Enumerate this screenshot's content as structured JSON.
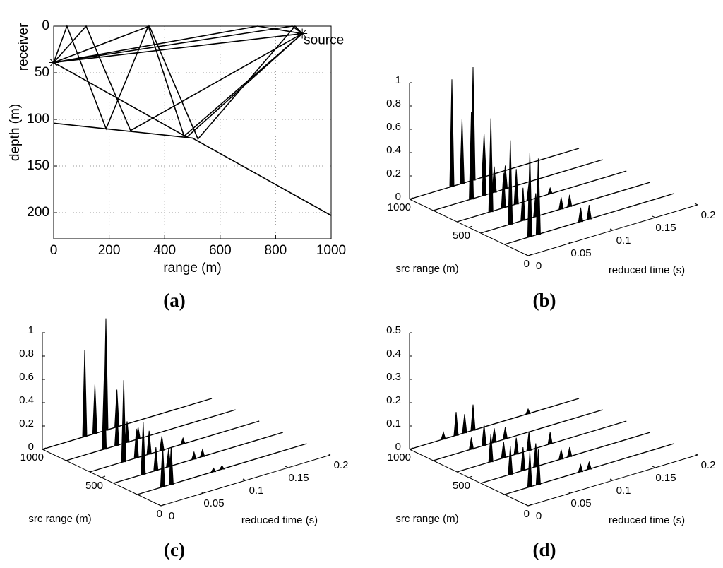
{
  "chart_data": [
    {
      "type": "rays",
      "caption": "(a)",
      "xlabel": "range (m)",
      "ylabel": "depth (m)",
      "xlim": [
        0,
        1000
      ],
      "xticks": [
        0,
        200,
        400,
        600,
        800,
        1000
      ],
      "ylim": [
        228,
        0
      ],
      "yticks": [
        0,
        50,
        100,
        150,
        200
      ],
      "grid": true,
      "color": "#000000",
      "annotations": [
        {
          "text": "receiver",
          "x": 0,
          "y": 39
        },
        {
          "text": "source",
          "x": 896,
          "y": 8
        }
      ],
      "series": [
        {
          "x": [
            0,
            500,
            1000
          ],
          "values": [
            104,
            120,
            203
          ]
        },
        {
          "x": [
            0,
            896
          ],
          "values": [
            39,
            8
          ]
        },
        {
          "x": [
            0,
            735,
            896
          ],
          "values": [
            39,
            0,
            8
          ]
        },
        {
          "x": [
            0,
            480,
            896
          ],
          "values": [
            39,
            119,
            8
          ]
        },
        {
          "x": [
            0,
            48,
            189,
            341,
            470,
            896
          ],
          "values": [
            39,
            0,
            110,
            0,
            118,
            8
          ]
        },
        {
          "x": [
            0,
            117,
            277,
            896
          ],
          "values": [
            39,
            0,
            112,
            8
          ]
        },
        {
          "x": [
            0,
            860,
            896
          ],
          "values": [
            39,
            0,
            8
          ]
        },
        {
          "x": [
            0,
            345,
            520,
            870,
            896
          ],
          "values": [
            39,
            0,
            121,
            0,
            8
          ]
        }
      ]
    },
    {
      "type": "waterfall",
      "caption": "(b)",
      "xlabel": "reduced time (s)",
      "ylabel": "src range (m)",
      "xlim": [
        0,
        0.2
      ],
      "xticks": [
        0,
        0.05,
        0.1,
        0.15,
        0.2
      ],
      "ylim": [
        0,
        1000
      ],
      "yticks": [
        0,
        500,
        1000
      ],
      "zlim": [
        0,
        1
      ],
      "zticks": [
        0,
        0.2,
        0.4,
        0.6,
        0.8,
        1
      ],
      "color": "#000000",
      "series": [
        {
          "src_range": 1000,
          "x": [
            0.05,
            0.062,
            0.075,
            0.088
          ],
          "values": [
            0.92,
            0.55,
            0.97,
            0.37
          ]
        },
        {
          "src_range": 800,
          "x": [
            0.045,
            0.06,
            0.072,
            0.085
          ],
          "values": [
            0.75,
            0.36,
            0.22,
            0.2
          ]
        },
        {
          "src_range": 600,
          "x": [
            0.04,
            0.055,
            0.07,
            0.085,
            0.11
          ],
          "values": [
            0.8,
            0.3,
            0.3,
            0.15,
            0.05
          ]
        },
        {
          "src_range": 400,
          "x": [
            0.035,
            0.05,
            0.065,
            0.095,
            0.105
          ],
          "values": [
            0.72,
            0.28,
            0.2,
            0.1,
            0.1
          ]
        },
        {
          "src_range": 200,
          "x": [
            0.03,
            0.04,
            0.09,
            0.1
          ],
          "values": [
            0.72,
            0.65,
            0.12,
            0.12
          ]
        }
      ]
    },
    {
      "type": "waterfall",
      "caption": "(c)",
      "xlabel": "reduced time (s)",
      "ylabel": "src range (m)",
      "xlim": [
        0,
        0.2
      ],
      "xticks": [
        0,
        0.05,
        0.1,
        0.15,
        0.2
      ],
      "ylim": [
        0,
        1000
      ],
      "yticks": [
        0,
        500,
        1000
      ],
      "zlim": [
        0,
        1
      ],
      "zticks": [
        0,
        0.2,
        0.4,
        0.6,
        0.8,
        1
      ],
      "color": "#000000",
      "series": [
        {
          "src_range": 1000,
          "x": [
            0.05,
            0.062,
            0.075,
            0.088
          ],
          "values": [
            0.74,
            0.42,
            0.96,
            0.32
          ]
        },
        {
          "src_range": 800,
          "x": [
            0.045,
            0.06,
            0.072,
            0.085
          ],
          "values": [
            0.62,
            0.28,
            0.18,
            0.1
          ]
        },
        {
          "src_range": 600,
          "x": [
            0.04,
            0.055,
            0.07,
            0.085,
            0.11
          ],
          "values": [
            0.7,
            0.25,
            0.2,
            0.12,
            0.05
          ]
        },
        {
          "src_range": 400,
          "x": [
            0.035,
            0.05,
            0.065,
            0.095,
            0.105
          ],
          "values": [
            0.45,
            0.2,
            0.15,
            0.06,
            0.06
          ]
        },
        {
          "src_range": 200,
          "x": [
            0.03,
            0.04,
            0.09,
            0.1
          ],
          "values": [
            0.35,
            0.32,
            0.03,
            0.03
          ]
        }
      ]
    },
    {
      "type": "waterfall",
      "caption": "(d)",
      "xlabel": "reduced time (s)",
      "ylabel": "src range (m)",
      "xlim": [
        0,
        0.2
      ],
      "xticks": [
        0,
        0.05,
        0.1,
        0.15,
        0.2
      ],
      "ylim": [
        0,
        1000
      ],
      "yticks": [
        0,
        500,
        1000
      ],
      "zlim": [
        0,
        0.5
      ],
      "zticks": [
        0,
        0.1,
        0.2,
        0.3,
        0.4,
        0.5
      ],
      "color": "#000000",
      "series": [
        {
          "src_range": 1000,
          "x": [
            0.04,
            0.055,
            0.065,
            0.075,
            0.14
          ],
          "values": [
            0.03,
            0.1,
            0.08,
            0.11,
            0.02
          ]
        },
        {
          "src_range": 800,
          "x": [
            0.045,
            0.06,
            0.072,
            0.085
          ],
          "values": [
            0.05,
            0.09,
            0.06,
            0.05
          ]
        },
        {
          "src_range": 600,
          "x": [
            0.04,
            0.055,
            0.07,
            0.085,
            0.11
          ],
          "values": [
            0.12,
            0.07,
            0.07,
            0.08,
            0.05
          ]
        },
        {
          "src_range": 400,
          "x": [
            0.035,
            0.05,
            0.065,
            0.095,
            0.105
          ],
          "values": [
            0.12,
            0.1,
            0.1,
            0.04,
            0.04
          ]
        },
        {
          "src_range": 200,
          "x": [
            0.03,
            0.04,
            0.09,
            0.1
          ],
          "values": [
            0.15,
            0.15,
            0.03,
            0.03
          ]
        }
      ]
    }
  ]
}
